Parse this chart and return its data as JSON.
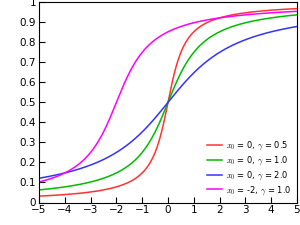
{
  "title": "",
  "xlim": [
    -5,
    5
  ],
  "ylim": [
    0,
    1
  ],
  "xticks": [
    -5,
    -4,
    -3,
    -2,
    -1,
    0,
    1,
    2,
    3,
    4,
    5
  ],
  "yticks": [
    0,
    0.1,
    0.2,
    0.3,
    0.4,
    0.5,
    0.6,
    0.7,
    0.8,
    0.9,
    1.0
  ],
  "ytick_labels": [
    "0",
    "0.1",
    "0.2",
    "0.3",
    "0.4",
    "0.5",
    "0.6",
    "0.7",
    "0.8",
    "0.9",
    "1"
  ],
  "curves": [
    {
      "x0": 0,
      "gamma": 0.5,
      "color": "#ff3333",
      "label": "$x_0$ = 0, $\\gamma$ = 0.5"
    },
    {
      "x0": 0,
      "gamma": 1.0,
      "color": "#00bb00",
      "label": "$x_0$ = 0, $\\gamma$ = 1.0"
    },
    {
      "x0": 0,
      "gamma": 2.0,
      "color": "#3333ff",
      "label": "$x_0$ = 0, $\\gamma$ = 2.0"
    },
    {
      "x0": -2,
      "gamma": 1.0,
      "color": "#ff00ff",
      "label": "$x_0$ = -2, $\\gamma$ = 1.0"
    }
  ],
  "legend_loc": "lower right",
  "background_color": "#ffffff",
  "linewidth": 1.1,
  "tick_fontsize": 7.5,
  "legend_fontsize": 6.0
}
